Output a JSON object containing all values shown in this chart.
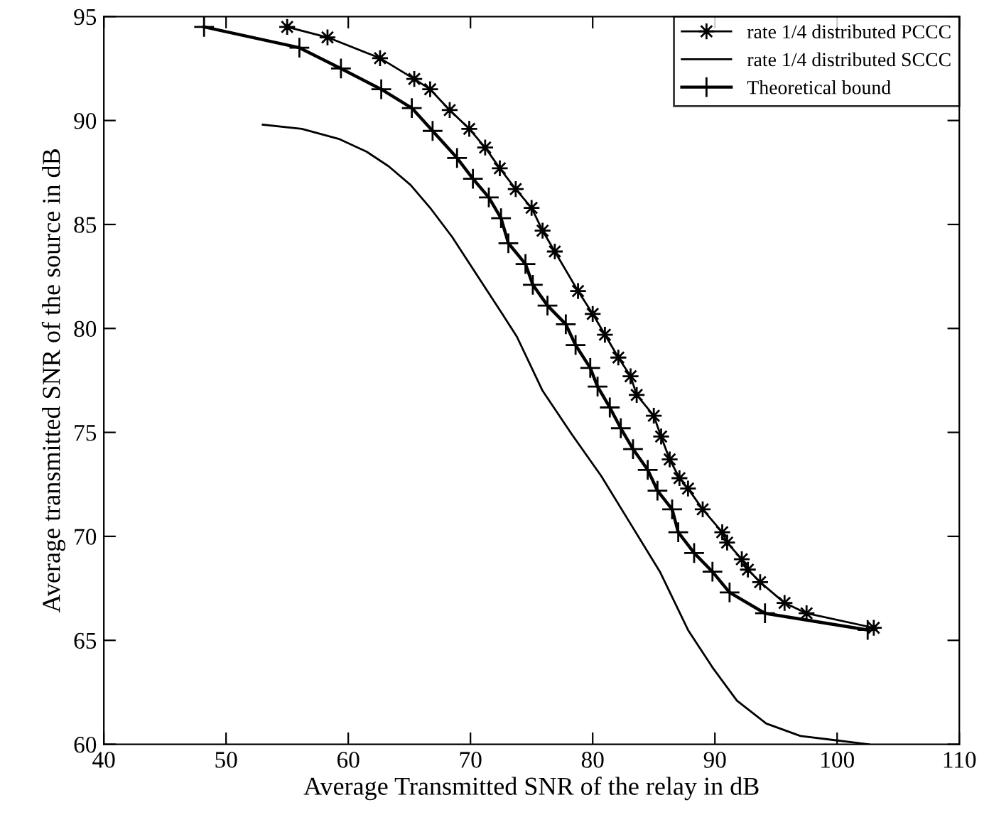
{
  "chart_data": {
    "type": "line",
    "xlabel": "Average Transmitted SNR of the relay in dB",
    "ylabel": "Average transmitted SNR of the source in dB",
    "xlim": [
      40,
      110
    ],
    "xticks": [
      40,
      50,
      60,
      70,
      80,
      90,
      100,
      110
    ],
    "ylim": [
      60,
      95
    ],
    "yticks": [
      60,
      65,
      70,
      75,
      80,
      85,
      90,
      95
    ],
    "grid": false,
    "legend": "top right",
    "series": [
      {
        "name": "rate 1/4 distributed PCCC",
        "color": "#000000",
        "marker": "star",
        "x": [
          55.0,
          58.3,
          62.6,
          65.4,
          66.7,
          68.3,
          69.9,
          71.2,
          72.4,
          73.7,
          75.0,
          75.9,
          76.9,
          78.8,
          80.0,
          81.0,
          82.1,
          83.1,
          83.6,
          85.0,
          85.6,
          86.3,
          87.1,
          87.8,
          89.0,
          90.6,
          91.0,
          92.2,
          92.7,
          93.7,
          95.7,
          97.5,
          103.0
        ],
        "values": [
          94.5,
          94.0,
          93.0,
          92.0,
          91.5,
          90.5,
          89.6,
          88.7,
          87.7,
          86.7,
          85.8,
          84.7,
          83.7,
          81.8,
          80.7,
          79.7,
          78.6,
          77.7,
          76.8,
          75.8,
          74.8,
          73.7,
          72.8,
          72.3,
          71.3,
          70.2,
          69.7,
          68.9,
          68.4,
          67.8,
          66.8,
          66.3,
          65.6
        ]
      },
      {
        "name": "rate 1/4 distributed SCCC",
        "color": "#000000",
        "marker": "none",
        "x": [
          53.0,
          56.2,
          59.3,
          61.5,
          63.3,
          65.1,
          66.7,
          68.5,
          70.6,
          72.6,
          73.8,
          75.9,
          78.3,
          80.7,
          83.1,
          85.5,
          87.8,
          89.8,
          91.8,
          94.2,
          97.0,
          99.8,
          102.6
        ],
        "values": [
          89.8,
          89.6,
          89.1,
          88.5,
          87.8,
          86.9,
          85.8,
          84.4,
          82.5,
          80.7,
          79.6,
          77.0,
          74.9,
          72.9,
          70.6,
          68.3,
          65.5,
          63.7,
          62.1,
          61.0,
          60.4,
          60.2,
          60.0
        ]
      },
      {
        "name": "Theoretical bound",
        "color": "#000000",
        "marker": "cross",
        "x": [
          48.2,
          56.0,
          59.4,
          62.7,
          65.2,
          66.9,
          68.9,
          70.2,
          71.5,
          72.5,
          73.1,
          74.5,
          75.1,
          76.3,
          77.8,
          78.6,
          79.8,
          80.4,
          81.4,
          82.3,
          83.3,
          84.5,
          85.3,
          86.5,
          87.0,
          88.3,
          89.8,
          91.2,
          94.1,
          102.5
        ],
        "values": [
          94.5,
          93.5,
          92.5,
          91.5,
          90.6,
          89.5,
          88.2,
          87.2,
          86.3,
          85.3,
          84.1,
          83.1,
          82.1,
          81.1,
          80.2,
          79.2,
          78.1,
          77.2,
          76.2,
          75.2,
          74.2,
          73.2,
          72.2,
          71.3,
          70.2,
          69.2,
          68.3,
          67.3,
          66.3,
          65.5
        ]
      }
    ]
  }
}
